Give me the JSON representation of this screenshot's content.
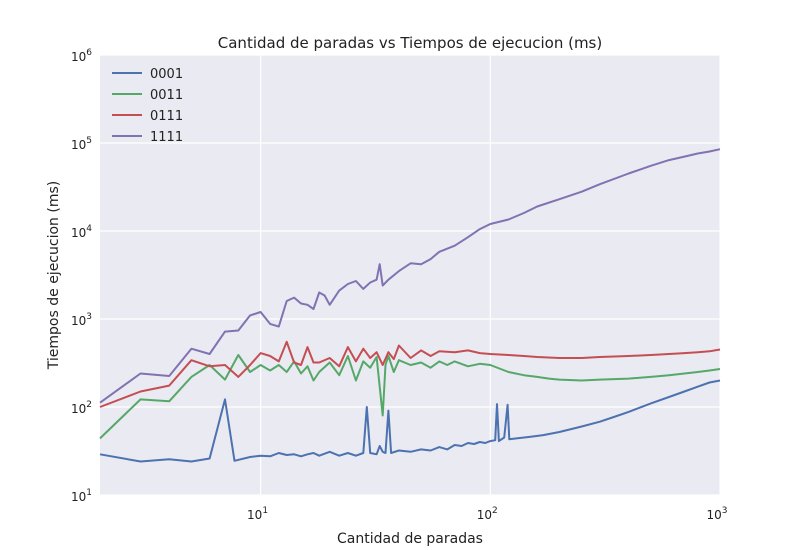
{
  "chart_data": {
    "type": "line",
    "title": "Cantidad de paradas vs Tiempos de ejecucion (ms)",
    "xlabel": "Cantidad de paradas",
    "ylabel": "Tiempos de ejecucion (ms)",
    "xscale": "log",
    "yscale": "log",
    "xlim": [
      2,
      1000
    ],
    "ylim": [
      10,
      1000000
    ],
    "grid": true,
    "legend": "top-left",
    "x_ticks": [
      {
        "value": 10,
        "base": "10",
        "exp": "1"
      },
      {
        "value": 100,
        "base": "10",
        "exp": "2"
      },
      {
        "value": 1000,
        "base": "10",
        "exp": "3"
      }
    ],
    "y_ticks": [
      {
        "value": 10,
        "base": "10",
        "exp": "1"
      },
      {
        "value": 100,
        "base": "10",
        "exp": "2"
      },
      {
        "value": 1000,
        "base": "10",
        "exp": "3"
      },
      {
        "value": 10000,
        "base": "10",
        "exp": "4"
      },
      {
        "value": 100000,
        "base": "10",
        "exp": "5"
      },
      {
        "value": 1000000,
        "base": "10",
        "exp": "6"
      }
    ],
    "series": [
      {
        "name": "0001",
        "color": "#4C72B0",
        "points": [
          [
            2,
            29
          ],
          [
            3,
            24
          ],
          [
            4,
            25.5
          ],
          [
            5,
            24
          ],
          [
            6,
            26
          ],
          [
            7,
            122
          ],
          [
            7.7,
            24.5
          ],
          [
            9,
            27
          ],
          [
            10,
            28
          ],
          [
            11,
            27.5
          ],
          [
            12,
            30
          ],
          [
            13,
            28.5
          ],
          [
            14,
            29
          ],
          [
            15,
            27.5
          ],
          [
            16,
            29
          ],
          [
            17,
            30
          ],
          [
            18,
            28
          ],
          [
            20,
            31
          ],
          [
            22,
            28
          ],
          [
            24,
            30
          ],
          [
            26,
            28
          ],
          [
            28,
            30
          ],
          [
            29,
            100
          ],
          [
            30,
            30
          ],
          [
            32,
            29
          ],
          [
            33,
            36
          ],
          [
            34,
            31
          ],
          [
            35,
            30
          ],
          [
            36,
            91
          ],
          [
            37,
            30
          ],
          [
            40,
            32
          ],
          [
            45,
            31
          ],
          [
            50,
            33
          ],
          [
            55,
            32
          ],
          [
            60,
            35
          ],
          [
            65,
            33
          ],
          [
            70,
            37
          ],
          [
            75,
            36
          ],
          [
            80,
            39
          ],
          [
            85,
            38
          ],
          [
            90,
            40
          ],
          [
            95,
            39
          ],
          [
            100,
            41
          ],
          [
            105,
            42
          ],
          [
            107,
            108
          ],
          [
            109,
            41
          ],
          [
            115,
            45
          ],
          [
            119,
            106
          ],
          [
            121,
            43
          ],
          [
            130,
            44
          ],
          [
            150,
            46
          ],
          [
            170,
            48
          ],
          [
            200,
            52
          ],
          [
            250,
            60
          ],
          [
            300,
            68
          ],
          [
            350,
            78
          ],
          [
            400,
            88
          ],
          [
            500,
            110
          ],
          [
            600,
            130
          ],
          [
            700,
            150
          ],
          [
            800,
            170
          ],
          [
            900,
            190
          ],
          [
            1000,
            200
          ]
        ]
      },
      {
        "name": "0011",
        "color": "#55A868",
        "points": [
          [
            2,
            44
          ],
          [
            3,
            122
          ],
          [
            4,
            116
          ],
          [
            5,
            220
          ],
          [
            6,
            300
          ],
          [
            7,
            205
          ],
          [
            8,
            390
          ],
          [
            9,
            250
          ],
          [
            10,
            300
          ],
          [
            11,
            260
          ],
          [
            12,
            300
          ],
          [
            13,
            250
          ],
          [
            14,
            330
          ],
          [
            15,
            240
          ],
          [
            16,
            290
          ],
          [
            17,
            200
          ],
          [
            18,
            250
          ],
          [
            20,
            320
          ],
          [
            22,
            230
          ],
          [
            24,
            380
          ],
          [
            26,
            200
          ],
          [
            28,
            330
          ],
          [
            30,
            280
          ],
          [
            32,
            370
          ],
          [
            34,
            80
          ],
          [
            35,
            300
          ],
          [
            36,
            380
          ],
          [
            38,
            250
          ],
          [
            40,
            340
          ],
          [
            45,
            300
          ],
          [
            50,
            320
          ],
          [
            55,
            280
          ],
          [
            60,
            330
          ],
          [
            65,
            300
          ],
          [
            70,
            330
          ],
          [
            80,
            290
          ],
          [
            90,
            310
          ],
          [
            100,
            300
          ],
          [
            120,
            250
          ],
          [
            140,
            230
          ],
          [
            160,
            220
          ],
          [
            180,
            210
          ],
          [
            200,
            205
          ],
          [
            250,
            200
          ],
          [
            300,
            205
          ],
          [
            400,
            210
          ],
          [
            500,
            220
          ],
          [
            600,
            230
          ],
          [
            700,
            240
          ],
          [
            800,
            250
          ],
          [
            900,
            260
          ],
          [
            1000,
            270
          ]
        ]
      },
      {
        "name": "0111",
        "color": "#C44E52",
        "points": [
          [
            2,
            100
          ],
          [
            3,
            150
          ],
          [
            4,
            175
          ],
          [
            5,
            340
          ],
          [
            6,
            290
          ],
          [
            7,
            300
          ],
          [
            8,
            220
          ],
          [
            9,
            300
          ],
          [
            10,
            410
          ],
          [
            11,
            380
          ],
          [
            12,
            330
          ],
          [
            13,
            550
          ],
          [
            14,
            320
          ],
          [
            15,
            300
          ],
          [
            16,
            480
          ],
          [
            17,
            320
          ],
          [
            18,
            320
          ],
          [
            20,
            360
          ],
          [
            22,
            290
          ],
          [
            24,
            480
          ],
          [
            26,
            330
          ],
          [
            28,
            460
          ],
          [
            30,
            360
          ],
          [
            32,
            420
          ],
          [
            34,
            300
          ],
          [
            36,
            420
          ],
          [
            38,
            350
          ],
          [
            40,
            500
          ],
          [
            45,
            360
          ],
          [
            50,
            440
          ],
          [
            55,
            380
          ],
          [
            60,
            430
          ],
          [
            70,
            420
          ],
          [
            80,
            440
          ],
          [
            90,
            410
          ],
          [
            100,
            400
          ],
          [
            120,
            390
          ],
          [
            140,
            380
          ],
          [
            160,
            370
          ],
          [
            200,
            360
          ],
          [
            250,
            360
          ],
          [
            300,
            370
          ],
          [
            400,
            380
          ],
          [
            500,
            390
          ],
          [
            600,
            400
          ],
          [
            700,
            410
          ],
          [
            800,
            420
          ],
          [
            900,
            430
          ],
          [
            1000,
            450
          ]
        ]
      },
      {
        "name": "1111",
        "color": "#8172B2",
        "points": [
          [
            2,
            112
          ],
          [
            3,
            240
          ],
          [
            4,
            225
          ],
          [
            5,
            460
          ],
          [
            6,
            400
          ],
          [
            7,
            720
          ],
          [
            8,
            740
          ],
          [
            9,
            1100
          ],
          [
            10,
            1200
          ],
          [
            11,
            880
          ],
          [
            12,
            820
          ],
          [
            13,
            1600
          ],
          [
            14,
            1750
          ],
          [
            15,
            1500
          ],
          [
            16,
            1450
          ],
          [
            17,
            1300
          ],
          [
            18,
            2000
          ],
          [
            19,
            1850
          ],
          [
            20,
            1450
          ],
          [
            22,
            2100
          ],
          [
            24,
            2500
          ],
          [
            26,
            2700
          ],
          [
            28,
            2200
          ],
          [
            30,
            2600
          ],
          [
            32,
            2800
          ],
          [
            33,
            4200
          ],
          [
            34,
            2400
          ],
          [
            36,
            2800
          ],
          [
            40,
            3500
          ],
          [
            45,
            4300
          ],
          [
            50,
            4200
          ],
          [
            55,
            4800
          ],
          [
            60,
            5800
          ],
          [
            70,
            6800
          ],
          [
            80,
            8500
          ],
          [
            90,
            10500
          ],
          [
            100,
            12000
          ],
          [
            120,
            13500
          ],
          [
            140,
            16000
          ],
          [
            160,
            19000
          ],
          [
            200,
            23000
          ],
          [
            250,
            28000
          ],
          [
            300,
            34000
          ],
          [
            400,
            45000
          ],
          [
            500,
            55000
          ],
          [
            600,
            64000
          ],
          [
            700,
            70000
          ],
          [
            800,
            76000
          ],
          [
            900,
            80000
          ],
          [
            1000,
            85000
          ]
        ]
      }
    ]
  }
}
